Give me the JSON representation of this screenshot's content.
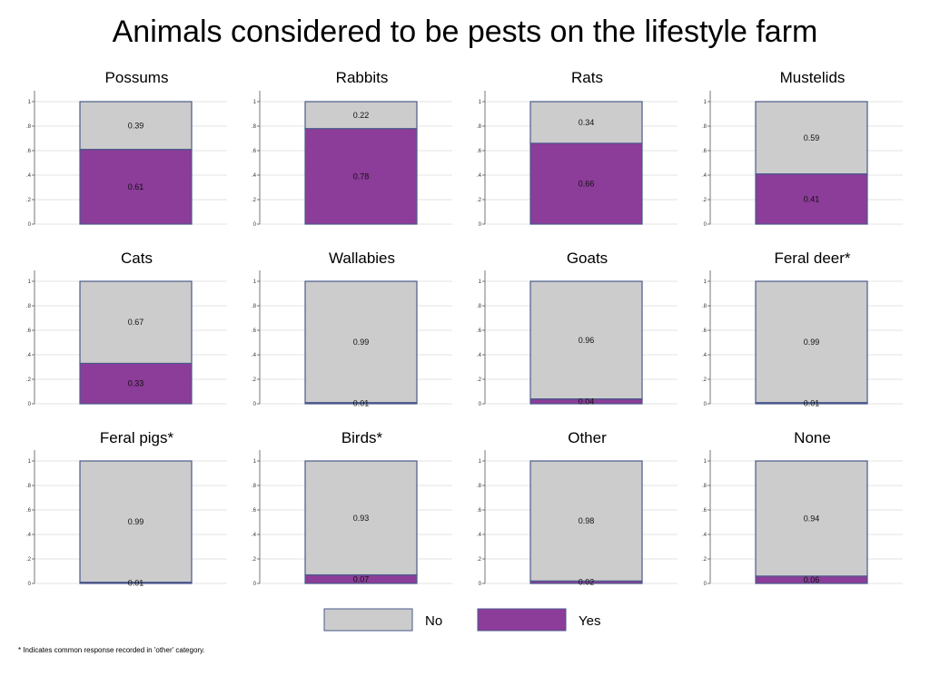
{
  "title": "Animals considered to be pests on the lifestyle farm",
  "footnote": "* Indicates common response recorded in 'other' category.",
  "colors": {
    "no": "#cccccc",
    "yes": "#8c3c99",
    "border": "#4a5a8a",
    "grid": "#e3e3e3"
  },
  "legend": [
    {
      "key": "no",
      "label": "No"
    },
    {
      "key": "yes",
      "label": "Yes"
    }
  ],
  "chart_data": {
    "type": "bar",
    "stacked": true,
    "layout": "small-multiples 3x4",
    "ylim": [
      0,
      1
    ],
    "yticks": [
      "0",
      ".2",
      ".4",
      ".6",
      ".8",
      "1"
    ],
    "grid": true,
    "legend_position": "bottom",
    "series_names": [
      "No",
      "Yes"
    ],
    "panels": [
      {
        "title": "Possums",
        "yes": 0.61,
        "no": 0.39,
        "yes_label": "0.61",
        "no_label": "0.39"
      },
      {
        "title": "Rabbits",
        "yes": 0.78,
        "no": 0.22,
        "yes_label": "0.78",
        "no_label": "0.22"
      },
      {
        "title": "Rats",
        "yes": 0.66,
        "no": 0.34,
        "yes_label": "0.66",
        "no_label": "0.34"
      },
      {
        "title": "Mustelids",
        "yes": 0.41,
        "no": 0.59,
        "yes_label": "0.41",
        "no_label": "0.59"
      },
      {
        "title": "Cats",
        "yes": 0.33,
        "no": 0.67,
        "yes_label": "0.33",
        "no_label": "0.67"
      },
      {
        "title": "Wallabies",
        "yes": 0.01,
        "no": 0.99,
        "yes_label": "0.01",
        "no_label": "0.99"
      },
      {
        "title": "Goats",
        "yes": 0.04,
        "no": 0.96,
        "yes_label": "0.04",
        "no_label": "0.96"
      },
      {
        "title": "Feral deer*",
        "yes": 0.01,
        "no": 0.99,
        "yes_label": "0.01",
        "no_label": "0.99"
      },
      {
        "title": "Feral pigs*",
        "yes": 0.01,
        "no": 0.99,
        "yes_label": "0.01",
        "no_label": "0.99"
      },
      {
        "title": "Birds*",
        "yes": 0.07,
        "no": 0.93,
        "yes_label": "0.07",
        "no_label": "0.93"
      },
      {
        "title": "Other",
        "yes": 0.02,
        "no": 0.98,
        "yes_label": "0.02",
        "no_label": "0.98"
      },
      {
        "title": "None",
        "yes": 0.06,
        "no": 0.94,
        "yes_label": "0.06",
        "no_label": "0.94"
      }
    ]
  }
}
